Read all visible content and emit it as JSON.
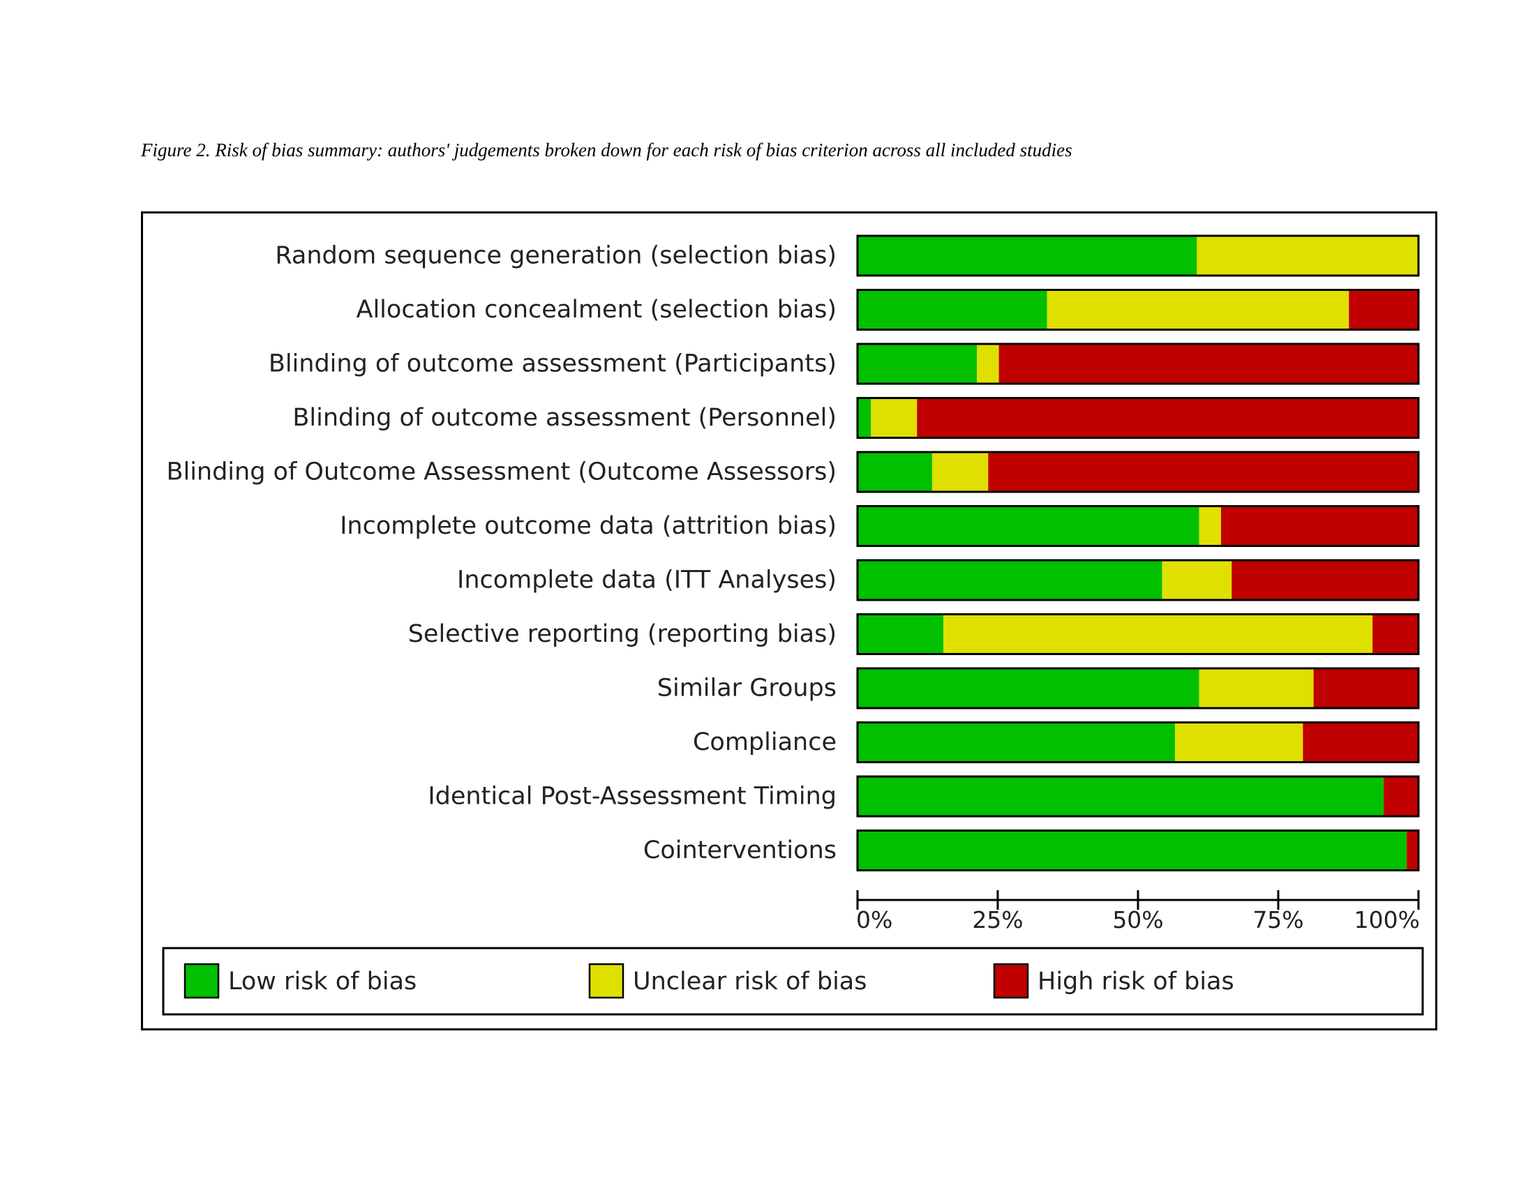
{
  "caption": "Figure 2. Risk of bias summary: authors' judgements broken down for each risk of bias criterion across all included studies",
  "chart_data": {
    "type": "bar",
    "orientation": "horizontal",
    "stacked": true,
    "categories": [
      "Random sequence generation (selection bias)",
      "Allocation concealment (selection bias)",
      "Blinding of outcome assessment (Participants)",
      "Blinding of outcome assessment (Personnel)",
      "Blinding of Outcome Assessment (Outcome Assessors)",
      "Incomplete outcome data (attrition bias)",
      "Incomplete data (ITT Analyses)",
      "Selective reporting (reporting bias)",
      "Similar Groups",
      "Compliance",
      "Identical Post-Assessment Timing",
      "Cointerventions"
    ],
    "series": [
      {
        "name": "Low risk of bias",
        "color": "#00c000",
        "values": [
          60.5,
          33.8,
          21.3,
          2.4,
          13.3,
          60.9,
          54.3,
          15.3,
          60.9,
          56.6,
          93.8,
          97.9
        ]
      },
      {
        "name": "Unclear risk of bias",
        "color": "#e0e000",
        "values": [
          39.5,
          53.8,
          3.9,
          8.2,
          10.0,
          3.9,
          12.4,
          76.5,
          20.4,
          22.8,
          0,
          0
        ]
      },
      {
        "name": "High risk of bias",
        "color": "#c00000",
        "values": [
          0,
          12.4,
          74.8,
          89.4,
          76.7,
          35.2,
          33.3,
          8.2,
          18.7,
          20.6,
          6.2,
          2.1
        ]
      }
    ],
    "x_ticks": [
      "0%",
      "25%",
      "50%",
      "75%",
      "100%"
    ],
    "xlim": [
      0,
      100
    ],
    "legend_position": "bottom",
    "grid": false
  }
}
